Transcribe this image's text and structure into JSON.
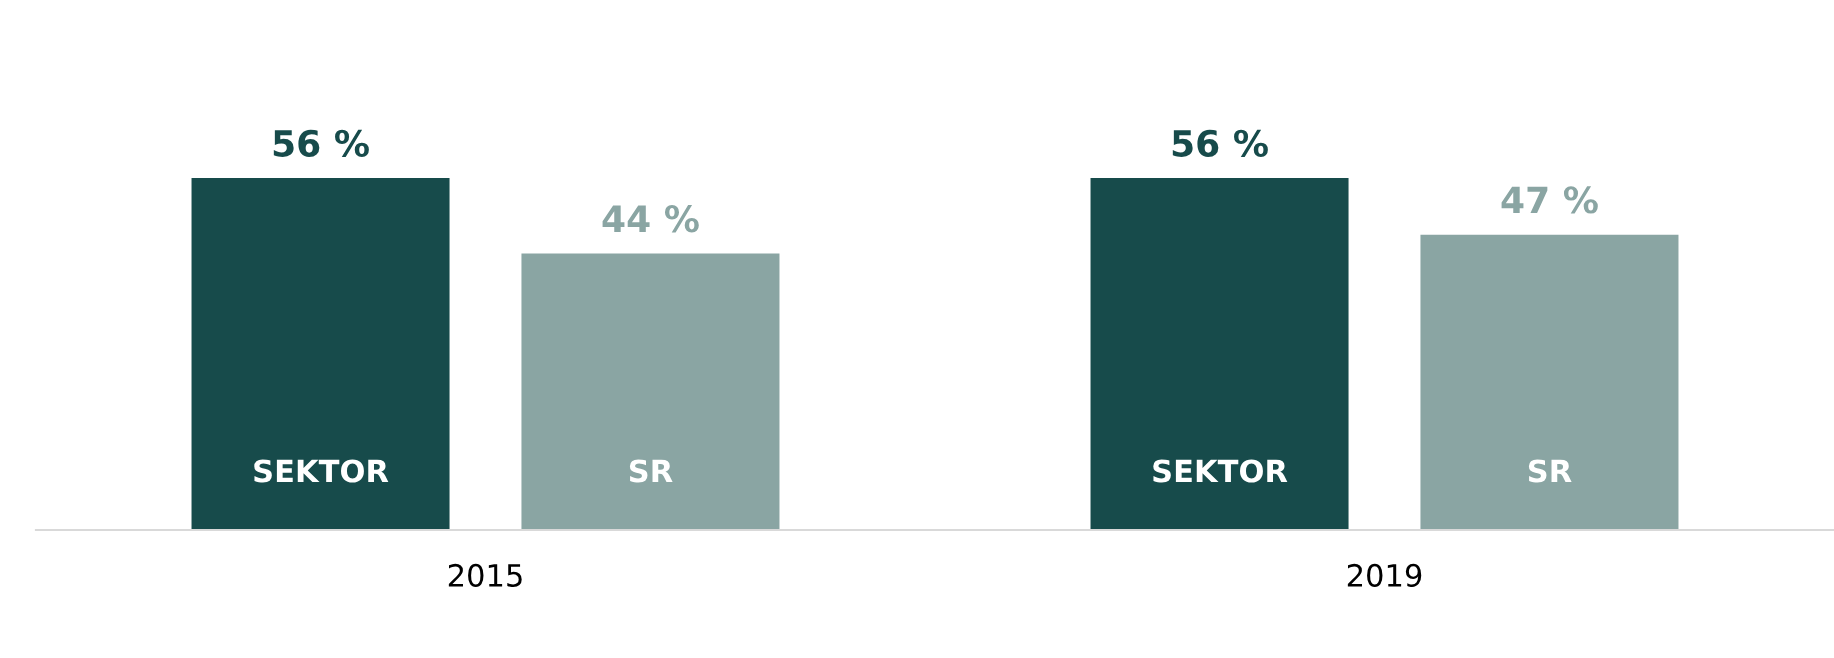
{
  "chart_data": {
    "type": "bar",
    "categories": [
      "2015",
      "2019"
    ],
    "series": [
      {
        "name": "SEKTOR",
        "color": "#174b4b",
        "values": [
          56,
          56
        ],
        "value_labels": [
          "56 %",
          "56 %"
        ]
      },
      {
        "name": "SR",
        "color": "#8aa5a3",
        "values": [
          44,
          47
        ],
        "value_labels": [
          "44 %",
          "47 %"
        ]
      }
    ],
    "grid": false,
    "legend": false,
    "tick_labels": "x"
  }
}
